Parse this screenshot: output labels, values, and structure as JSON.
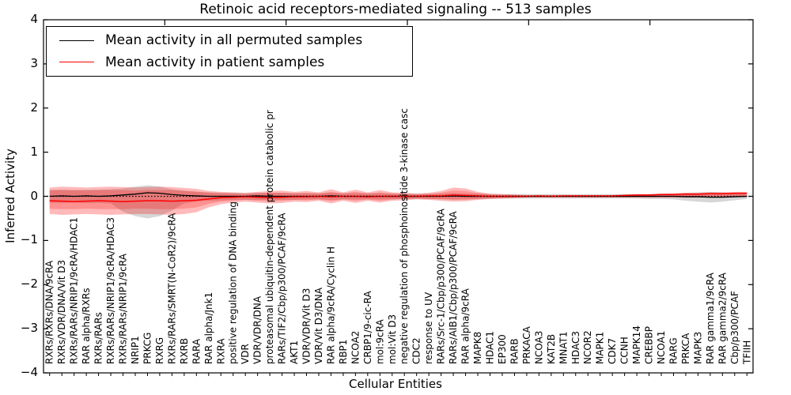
{
  "title": "Retinoic acid receptors-mediated signaling -- 513 samples",
  "axes": {
    "ylabel": "Inferred Activity",
    "xlabel": "Cellular Entities",
    "yticks": [
      4,
      3,
      2,
      1,
      0,
      -1,
      -2,
      -3,
      -4
    ],
    "ylim": [
      -4,
      4
    ]
  },
  "legend": {
    "entries": [
      {
        "label": "Mean activity in all permuted samples",
        "color": "#000000"
      },
      {
        "label": "Mean activity in patient samples",
        "color": "#ff0000"
      }
    ]
  },
  "colors": {
    "permuted_line": "#000000",
    "patient_line": "#ff0000",
    "permuted_band": "rgba(0,0,0,0.16)",
    "patient_band_outer": "rgba(255,0,0,0.27)",
    "patient_band_inner": "rgba(255,0,0,0.22)",
    "frame": "#000000"
  },
  "chart_data": {
    "type": "line",
    "title": "Retinoic acid receptors-mediated signaling -- 513 samples",
    "xlabel": "Cellular Entities",
    "ylabel": "Inferred Activity",
    "ylim": [
      -4,
      4
    ],
    "grid": false,
    "legend_position": "upper left",
    "zero_line_dotted": true,
    "top_axis_ticks": [
      10,
      20,
      30,
      40,
      50
    ],
    "x_range": [
      0,
      58.5
    ],
    "categories": [
      "RXRs/RXRs/DNA/9cRA",
      "RXRs/VDR/DNA/Vit D3",
      "RXRs/RARs/NRIP1/9cRA/HDAC1",
      "RAR alpha/RXRs",
      "RXRs/RARs",
      "RXRs/RARs/NRIP1/9cRA/HDAC3",
      "RXRs/RARs/NRIP1/9cRA",
      "NRIP1",
      "PRKCG",
      "RXRG",
      "RXRs/RARs/SMRT(N-CoR2)/9cRA",
      "RXRB",
      "RARA",
      "RAR alpha/Jnk1",
      "RXRA",
      "positive regulation of DNA binding",
      "VDR",
      "VDR/VDR/DNA",
      "proteasomal ubiquitin-dependent protein catabolic pr",
      "RARs/TIF2/Cbp/p300/PCAF/9cRA",
      "AKT1",
      "VDR/VDR/Vit D3",
      "VDR/Vit D3/DNA",
      "RAR alpha/9cRA/Cyclin H",
      "RBP1",
      "NCOA2",
      "CRBP1/9-cic-RA",
      "mol:9cRA",
      "mol:Vit D3",
      "negative regulation of phosphoinositide 3-kinase casc",
      "CDC2",
      "response to UV",
      "RARs/Src-1/Cbp/p300/PCAF/9cRA",
      "RARs/AIB1/Cbp/p300/PCAF/9cRA",
      "RAR alpha/9cRA",
      "MAPK8",
      "HDAC1",
      "EP300",
      "RARB",
      "PRKACA",
      "NCOA3",
      "KAT2B",
      "MNAT1",
      "HDAC3",
      "NCOR2",
      "MAPK1",
      "CDK7",
      "CCNH",
      "MAPK14",
      "CREBBP",
      "NCOA1",
      "RARG",
      "PRKCA",
      "MAPK3",
      "RAR gamma1/9cRA",
      "RAR gamma2/9cRA",
      "Cbp/p300/PCAF",
      "TFIIH"
    ],
    "series": [
      {
        "name": "Mean activity in all permuted samples",
        "color": "#000000",
        "values": [
          0.0,
          0.01,
          0.0,
          0.01,
          0.0,
          0.01,
          0.03,
          0.05,
          0.08,
          0.07,
          0.04,
          0.02,
          0.01,
          0.0,
          0.0,
          0.0,
          0.0,
          0.01,
          0.0,
          0.0,
          0.0,
          0.0,
          0.0,
          0.01,
          0.0,
          0.0,
          0.0,
          0.0,
          0.0,
          0.0,
          0.0,
          0.0,
          0.0,
          0.01,
          0.0,
          0.0,
          0.0,
          0.0,
          0.0,
          0.0,
          0.0,
          0.0,
          0.0,
          0.0,
          0.0,
          0.0,
          0.0,
          0.0,
          0.0,
          0.0,
          0.0,
          0.0,
          -0.01,
          -0.01,
          -0.02,
          -0.02,
          -0.01,
          0.0
        ]
      },
      {
        "name": "Mean activity in patient samples",
        "color": "#ff0000",
        "values": [
          -0.1,
          -0.11,
          -0.12,
          -0.11,
          -0.1,
          -0.11,
          -0.12,
          -0.11,
          -0.1,
          -0.1,
          -0.11,
          -0.1,
          -0.09,
          -0.06,
          -0.03,
          -0.02,
          -0.01,
          -0.02,
          -0.03,
          -0.02,
          -0.01,
          -0.01,
          0.0,
          -0.01,
          0.0,
          0.0,
          -0.01,
          0.0,
          0.0,
          0.0,
          0.0,
          0.01,
          0.01,
          0.03,
          0.02,
          0.01,
          0.0,
          0.0,
          0.0,
          0.0,
          0.01,
          0.0,
          0.01,
          0.01,
          0.01,
          0.01,
          0.01,
          0.02,
          0.03,
          0.03,
          0.04,
          0.04,
          0.05,
          0.05,
          0.06,
          0.06,
          0.07,
          0.07
        ]
      }
    ],
    "bands": [
      {
        "name": "permuted-range",
        "color": "rgba(0,0,0,0.16)",
        "upper": [
          0.15,
          0.15,
          0.14,
          0.15,
          0.15,
          0.16,
          0.18,
          0.22,
          0.25,
          0.22,
          0.16,
          0.13,
          0.1,
          0.09,
          0.08,
          0.08,
          0.07,
          0.08,
          0.08,
          0.08,
          0.07,
          0.07,
          0.07,
          0.08,
          0.07,
          0.07,
          0.07,
          0.07,
          0.06,
          0.06,
          0.06,
          0.06,
          0.06,
          0.07,
          0.06,
          0.06,
          0.05,
          0.05,
          0.05,
          0.05,
          0.05,
          0.05,
          0.05,
          0.05,
          0.05,
          0.05,
          0.05,
          0.05,
          0.05,
          0.05,
          0.06,
          0.06,
          0.08,
          0.09,
          0.1,
          0.09,
          0.07,
          0.05
        ],
        "lower": [
          -0.15,
          -0.15,
          -0.14,
          -0.15,
          -0.15,
          -0.16,
          -0.35,
          -0.45,
          -0.5,
          -0.45,
          -0.32,
          -0.16,
          -0.12,
          -0.1,
          -0.09,
          -0.08,
          -0.08,
          -0.08,
          -0.08,
          -0.08,
          -0.08,
          -0.07,
          -0.07,
          -0.08,
          -0.07,
          -0.07,
          -0.07,
          -0.07,
          -0.07,
          -0.06,
          -0.06,
          -0.06,
          -0.06,
          -0.07,
          -0.06,
          -0.06,
          -0.06,
          -0.05,
          -0.05,
          -0.05,
          -0.05,
          -0.05,
          -0.05,
          -0.05,
          -0.05,
          -0.05,
          -0.05,
          -0.05,
          -0.05,
          -0.06,
          -0.06,
          -0.07,
          -0.1,
          -0.12,
          -0.14,
          -0.12,
          -0.09,
          -0.06
        ]
      },
      {
        "name": "patient-range-outer",
        "color": "rgba(255,0,0,0.27)",
        "upper": [
          0.2,
          0.22,
          0.21,
          0.2,
          0.21,
          0.22,
          0.21,
          0.2,
          0.21,
          0.22,
          0.21,
          0.19,
          0.17,
          0.12,
          0.1,
          0.09,
          0.08,
          0.1,
          0.12,
          0.13,
          0.1,
          0.12,
          0.09,
          0.16,
          0.09,
          0.15,
          0.09,
          0.14,
          0.09,
          0.08,
          0.06,
          0.08,
          0.12,
          0.2,
          0.18,
          0.1,
          0.06,
          0.05,
          0.04,
          0.03,
          0.03,
          0.03,
          0.03,
          0.03,
          0.03,
          0.03,
          0.03,
          0.04,
          0.05,
          0.05,
          0.06,
          0.07,
          0.08,
          0.08,
          0.09,
          0.09,
          0.1,
          0.1
        ],
        "lower": [
          -0.4,
          -0.42,
          -0.41,
          -0.4,
          -0.41,
          -0.42,
          -0.41,
          -0.4,
          -0.4,
          -0.41,
          -0.42,
          -0.4,
          -0.36,
          -0.25,
          -0.18,
          -0.14,
          -0.12,
          -0.14,
          -0.16,
          -0.15,
          -0.12,
          -0.13,
          -0.1,
          -0.16,
          -0.1,
          -0.15,
          -0.1,
          -0.14,
          -0.1,
          -0.09,
          -0.07,
          -0.08,
          -0.1,
          -0.12,
          -0.11,
          -0.08,
          -0.06,
          -0.05,
          -0.04,
          -0.03,
          -0.03,
          -0.03,
          -0.03,
          -0.03,
          -0.03,
          -0.03,
          -0.03,
          -0.03,
          -0.03,
          -0.03,
          -0.03,
          -0.03,
          -0.03,
          -0.03,
          -0.03,
          -0.03,
          -0.02,
          -0.02
        ]
      },
      {
        "name": "patient-range-inner",
        "color": "rgba(255,0,0,0.22)",
        "upper": [
          0.13,
          0.14,
          0.14,
          0.13,
          0.14,
          0.14,
          0.14,
          0.13,
          0.14,
          0.14,
          0.14,
          0.12,
          0.11,
          0.08,
          0.07,
          0.06,
          0.05,
          0.07,
          0.08,
          0.08,
          0.07,
          0.08,
          0.06,
          0.1,
          0.06,
          0.1,
          0.06,
          0.09,
          0.06,
          0.05,
          0.04,
          0.05,
          0.08,
          0.13,
          0.12,
          0.07,
          0.04,
          0.03,
          0.03,
          0.02,
          0.02,
          0.02,
          0.02,
          0.02,
          0.02,
          0.02,
          0.02,
          0.03,
          0.03,
          0.03,
          0.04,
          0.05,
          0.05,
          0.05,
          0.06,
          0.06,
          0.07,
          0.07
        ],
        "lower": [
          -0.28,
          -0.29,
          -0.29,
          -0.28,
          -0.29,
          -0.29,
          -0.29,
          -0.28,
          -0.28,
          -0.29,
          -0.29,
          -0.28,
          -0.25,
          -0.17,
          -0.12,
          -0.1,
          -0.08,
          -0.1,
          -0.11,
          -0.1,
          -0.08,
          -0.09,
          -0.07,
          -0.11,
          -0.07,
          -0.1,
          -0.07,
          -0.1,
          -0.07,
          -0.06,
          -0.05,
          -0.06,
          -0.07,
          -0.08,
          -0.08,
          -0.06,
          -0.04,
          -0.04,
          -0.03,
          -0.02,
          -0.02,
          -0.02,
          -0.02,
          -0.02,
          -0.02,
          -0.02,
          -0.02,
          -0.02,
          -0.02,
          -0.02,
          -0.02,
          -0.02,
          -0.02,
          -0.02,
          -0.02,
          -0.02,
          -0.01,
          -0.01
        ]
      }
    ]
  }
}
